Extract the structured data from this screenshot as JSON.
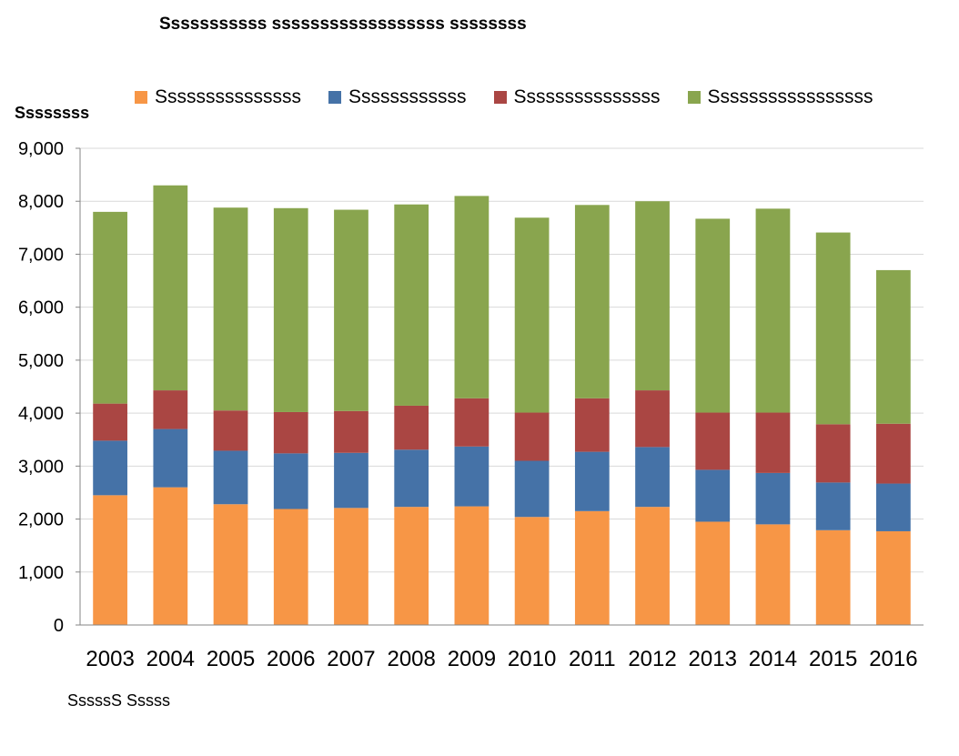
{
  "chart_data": {
    "type": "bar",
    "stacked": true,
    "title": "Sssssssssss ssssssssssssssssss ssssssss",
    "ylabel": "Ssssssss",
    "xlabel": "",
    "source_note": "SssssS Sssss",
    "categories": [
      "2003",
      "2004",
      "2005",
      "2006",
      "2007",
      "2008",
      "2009",
      "2010",
      "2011",
      "2012",
      "2013",
      "2014",
      "2015",
      "2016"
    ],
    "ylim": [
      0,
      9000
    ],
    "yticks": [
      0,
      1000,
      2000,
      3000,
      4000,
      5000,
      6000,
      7000,
      8000,
      9000
    ],
    "ytick_labels": [
      "0",
      "1,000",
      "2,000",
      "3,000",
      "4,000",
      "5,000",
      "6,000",
      "7,000",
      "8,000",
      "9,000"
    ],
    "grid": true,
    "legend_position": "top",
    "series": [
      {
        "name": "Sssssssssssssss",
        "color": "#f79646",
        "values": [
          2450,
          2600,
          2280,
          2190,
          2210,
          2230,
          2240,
          2040,
          2150,
          2230,
          1950,
          1900,
          1790,
          1770
        ]
      },
      {
        "name": "Ssssssssssss",
        "color": "#4572a7",
        "values": [
          1030,
          1100,
          1010,
          1050,
          1040,
          1080,
          1130,
          1060,
          1120,
          1130,
          980,
          970,
          900,
          900
        ]
      },
      {
        "name": "Sssssssssssssss",
        "color": "#aa4643",
        "values": [
          700,
          730,
          760,
          780,
          790,
          830,
          910,
          910,
          1010,
          1070,
          1080,
          1140,
          1100,
          1130
        ]
      },
      {
        "name": "Sssssssssssssssss",
        "color": "#89a54e",
        "values": [
          3620,
          3870,
          3830,
          3850,
          3800,
          3800,
          3820,
          3680,
          3650,
          3570,
          3660,
          3850,
          3620,
          2900
        ]
      }
    ]
  }
}
